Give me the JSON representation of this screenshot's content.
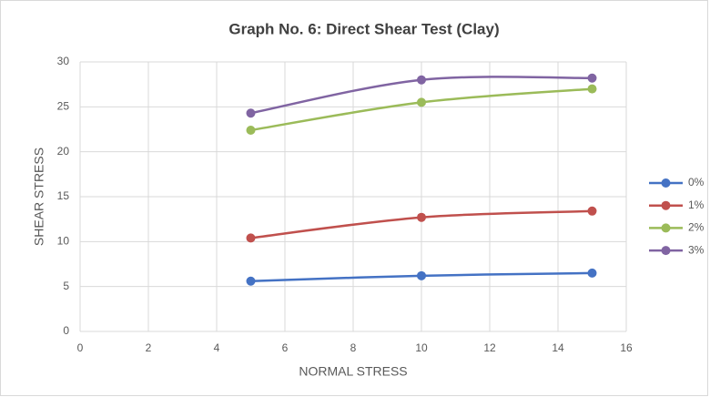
{
  "chart_data": {
    "type": "line",
    "title": "Graph No. 6: Direct Shear Test (Clay)",
    "x_label": "NORMAL STRESS",
    "y_label": "SHEAR STRESS",
    "x": [
      5,
      10,
      15
    ],
    "series": [
      {
        "name": "0%",
        "color": "#4472c4",
        "values": [
          5.6,
          6.2,
          6.5
        ]
      },
      {
        "name": "1%",
        "color": "#c0504d",
        "values": [
          10.4,
          12.7,
          13.4
        ]
      },
      {
        "name": "2%",
        "color": "#9bbb59",
        "values": [
          22.4,
          25.5,
          27
        ]
      },
      {
        "name": "3%",
        "color": "#8064a2",
        "values": [
          24.3,
          28,
          28.2
        ]
      }
    ],
    "xlim": [
      0,
      16
    ],
    "xticks": [
      0,
      2,
      4,
      6,
      8,
      10,
      12,
      14,
      16
    ],
    "ylim": [
      0,
      30
    ],
    "yticks": [
      0,
      5,
      10,
      15,
      20,
      25,
      30
    ],
    "grid": true,
    "smooth": true,
    "legend": "right"
  }
}
